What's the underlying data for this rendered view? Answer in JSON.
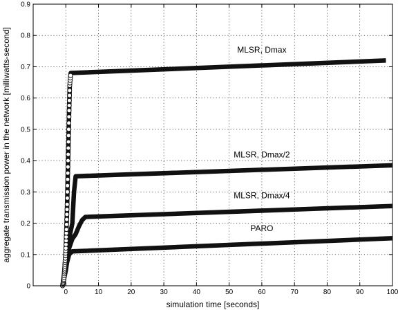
{
  "chart_data": {
    "type": "line",
    "title": "",
    "xlabel": "simulation time [seconds]",
    "ylabel": "aggregate transmission power in the network [milliwatts-second]",
    "xlim": [
      -10,
      100
    ],
    "ylim": [
      0,
      0.9
    ],
    "xticks": [
      0,
      10,
      20,
      30,
      40,
      50,
      60,
      70,
      80,
      90,
      100
    ],
    "yticks": [
      0,
      0.1,
      0.2,
      0.3,
      0.4,
      0.5,
      0.6,
      0.7,
      0.8,
      0.9
    ],
    "grid": true,
    "series": [
      {
        "name": "MLSR, Dmax",
        "x": [
          -1,
          -0.6,
          -0.4,
          -0.2,
          0,
          0.2,
          0.4,
          0.6,
          0.8,
          1.0,
          1.2,
          1.5,
          98
        ],
        "y": [
          0.0,
          0.02,
          0.05,
          0.08,
          0.12,
          0.18,
          0.26,
          0.36,
          0.46,
          0.56,
          0.64,
          0.68,
          0.72
        ]
      },
      {
        "name": "MLSR, Dmax/2",
        "x": [
          -1,
          0,
          1,
          2,
          2.5,
          3,
          100
        ],
        "y": [
          0.0,
          0.08,
          0.15,
          0.2,
          0.3,
          0.35,
          0.385
        ]
      },
      {
        "name": "MLSR, Dmax/4",
        "x": [
          -1,
          0,
          1,
          2,
          3,
          4,
          5,
          6,
          100
        ],
        "y": [
          0.0,
          0.05,
          0.12,
          0.15,
          0.165,
          0.19,
          0.21,
          0.22,
          0.255
        ]
      },
      {
        "name": "PARO",
        "x": [
          -1,
          0,
          1,
          2,
          100
        ],
        "y": [
          0.0,
          0.06,
          0.1,
          0.11,
          0.152
        ]
      }
    ],
    "labels": [
      {
        "text": "MLSR, Dmax",
        "x": 60,
        "y": 0.745
      },
      {
        "text": "MLSR, Dmax/2",
        "x": 60,
        "y": 0.41
      },
      {
        "text": "MLSR, Dmax/4",
        "x": 60,
        "y": 0.28
      },
      {
        "text": "PARO",
        "x": 60,
        "y": 0.175
      }
    ]
  }
}
